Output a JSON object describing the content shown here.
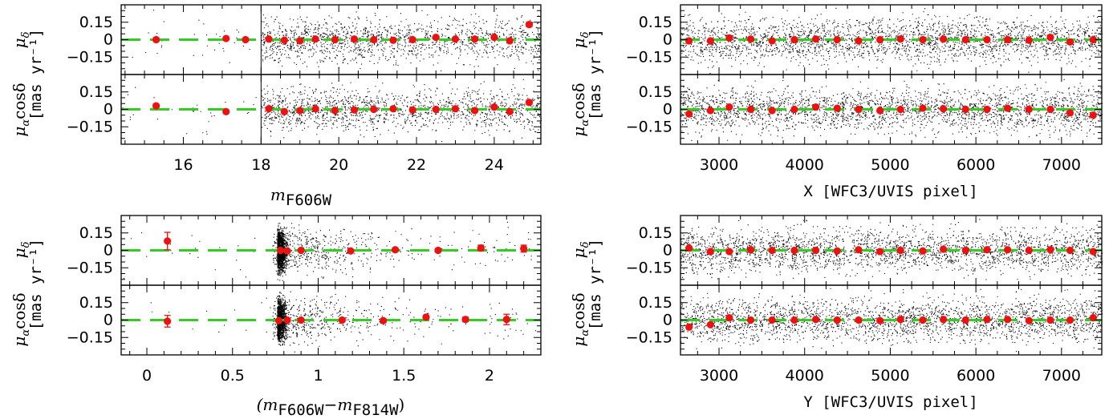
{
  "colors": {
    "scatter": "#000000",
    "mean": "#ee1111",
    "zero_line": "#33cc22"
  },
  "y_labels": {
    "top_symbol": "μ",
    "top_sub": "δ",
    "bottom_symbol": "μ",
    "bottom_sub": "α",
    "bottom_rest": "cosδ",
    "units": "[mas yr⁻¹]"
  },
  "chart_data": [
    {
      "id": "mag",
      "type": "scatter",
      "xlabel": "m",
      "xlabel_sub": "F606W",
      "xlim": [
        14.4,
        25.2
      ],
      "xticks": [
        16,
        18,
        20,
        22,
        24
      ],
      "x_major_step": 2,
      "x_minor_step": 0.5,
      "ylim": [
        -0.3,
        0.3
      ],
      "yticks": [
        0.15,
        0,
        -0.15
      ],
      "ytick_labels": [
        "0.15",
        "0",
        "−0.15"
      ],
      "grid": false,
      "reference_lines": [
        0
      ],
      "vertical_lines": [
        18
      ],
      "panels": [
        {
          "name": "μδ",
          "x": [
            15.3,
            17.1,
            17.6,
            18.2,
            18.6,
            19.0,
            19.4,
            19.9,
            20.4,
            20.9,
            21.4,
            21.9,
            22.5,
            23.0,
            23.5,
            24.0,
            24.4,
            24.9
          ],
          "y": [
            0.0,
            0.01,
            0.0,
            0.005,
            -0.005,
            -0.01,
            0.005,
            0.0,
            0.005,
            0.0,
            -0.005,
            0.0,
            0.02,
            0.005,
            0.005,
            0.02,
            -0.01,
            0.13
          ],
          "err": [
            0.015,
            0.01,
            0.008,
            0.006,
            0.005,
            0.005,
            0.005,
            0.005,
            0.005,
            0.006,
            0.006,
            0.007,
            0.008,
            0.009,
            0.01,
            0.012,
            0.015,
            0.02
          ]
        },
        {
          "name": "μα cosδ",
          "x": [
            15.3,
            17.1,
            18.2,
            18.6,
            19.0,
            19.4,
            19.9,
            20.4,
            20.9,
            21.4,
            21.9,
            22.5,
            23.0,
            23.5,
            24.0,
            24.4,
            24.9
          ],
          "y": [
            0.03,
            -0.02,
            0.005,
            -0.02,
            -0.01,
            0.005,
            -0.01,
            -0.005,
            0.0,
            0.005,
            -0.005,
            0.0,
            0.005,
            -0.01,
            0.02,
            -0.02,
            0.06
          ],
          "err": [
            0.015,
            0.01,
            0.006,
            0.005,
            0.005,
            0.005,
            0.005,
            0.005,
            0.006,
            0.006,
            0.007,
            0.008,
            0.009,
            0.01,
            0.012,
            0.015,
            0.02
          ]
        }
      ]
    },
    {
      "id": "colx",
      "type": "scatter",
      "xlabel": "X [WFC3/UVIS pixel]",
      "xlim": [
        2550,
        7470
      ],
      "xticks": [
        3000,
        4000,
        5000,
        6000,
        7000
      ],
      "x_major_step": 1000,
      "x_minor_step": 250,
      "ylim": [
        -0.3,
        0.3
      ],
      "yticks": [
        0.15,
        0,
        -0.15
      ],
      "ytick_labels": [
        "0.15",
        "0",
        "−0.15"
      ],
      "grid": false,
      "reference_lines": [
        0
      ],
      "panels": [
        {
          "name": "μδ",
          "x": [
            2650,
            2900,
            3120,
            3370,
            3620,
            3880,
            4130,
            4380,
            4630,
            4880,
            5120,
            5380,
            5620,
            5880,
            6130,
            6370,
            6620,
            6870,
            7100,
            7370
          ],
          "y": [
            -0.01,
            -0.01,
            0.015,
            0.005,
            -0.01,
            0.0,
            0.005,
            0.0,
            -0.01,
            0.0,
            0.005,
            0.0,
            0.005,
            0.0,
            0.0,
            0.0,
            -0.005,
            0.02,
            -0.02,
            0.0
          ],
          "err": [
            0.008,
            0.007,
            0.007,
            0.006,
            0.006,
            0.006,
            0.006,
            0.006,
            0.006,
            0.006,
            0.006,
            0.006,
            0.006,
            0.006,
            0.006,
            0.006,
            0.006,
            0.007,
            0.007,
            0.008
          ]
        },
        {
          "name": "μα cosδ",
          "x": [
            2650,
            2900,
            3120,
            3370,
            3620,
            3880,
            4130,
            4380,
            4630,
            4880,
            5120,
            5380,
            5620,
            5880,
            6130,
            6370,
            6620,
            6870,
            7100,
            7370
          ],
          "y": [
            -0.04,
            -0.01,
            0.02,
            0.0,
            -0.01,
            0.0,
            0.02,
            0.01,
            0.0,
            -0.01,
            0.0,
            0.01,
            0.005,
            0.0,
            0.0,
            0.01,
            0.0,
            0.0,
            -0.03,
            -0.05
          ],
          "err": [
            0.008,
            0.007,
            0.007,
            0.006,
            0.006,
            0.006,
            0.006,
            0.006,
            0.006,
            0.006,
            0.006,
            0.006,
            0.006,
            0.006,
            0.006,
            0.006,
            0.006,
            0.007,
            0.007,
            0.008
          ]
        }
      ]
    },
    {
      "id": "color",
      "type": "scatter",
      "xlabel": "(m",
      "xlabel_sub": "F606W",
      "xlabel_mid": "−m",
      "xlabel_sub2": "F814W",
      "xlabel_end": ")",
      "xlim": [
        -0.15,
        2.3
      ],
      "xticks": [
        0,
        0.5,
        1,
        1.5,
        2
      ],
      "x_major_step": 0.5,
      "x_minor_step": 0.1,
      "ylim": [
        -0.3,
        0.3
      ],
      "yticks": [
        0.15,
        0,
        -0.15
      ],
      "ytick_labels": [
        "0.15",
        "0",
        "−0.15"
      ],
      "grid": false,
      "reference_lines": [
        0
      ],
      "panels": [
        {
          "name": "μδ",
          "x": [
            0.12,
            0.78,
            0.82,
            0.9,
            1.19,
            1.45,
            1.7,
            1.95,
            2.2
          ],
          "y": [
            0.08,
            0.0,
            -0.005,
            0.0,
            -0.005,
            0.005,
            0.0,
            0.02,
            0.015
          ],
          "err": [
            0.075,
            0.004,
            0.004,
            0.005,
            0.01,
            0.015,
            0.015,
            0.025,
            0.03
          ]
        },
        {
          "name": "μα cosδ",
          "x": [
            0.12,
            0.77,
            0.82,
            0.9,
            1.14,
            1.38,
            1.63,
            1.86,
            2.1
          ],
          "y": [
            -0.01,
            -0.005,
            0.0,
            0.0,
            0.0,
            -0.005,
            0.025,
            0.005,
            0.005
          ],
          "err": [
            0.05,
            0.004,
            0.004,
            0.005,
            0.01,
            0.015,
            0.015,
            0.02,
            0.045
          ]
        }
      ]
    },
    {
      "id": "coly",
      "type": "scatter",
      "xlabel": "Y [WFC3/UVIS pixel]",
      "xlim": [
        2550,
        7470
      ],
      "xticks": [
        3000,
        4000,
        5000,
        6000,
        7000
      ],
      "x_major_step": 1000,
      "x_minor_step": 250,
      "ylim": [
        -0.3,
        0.3
      ],
      "yticks": [
        0.15,
        0,
        -0.15
      ],
      "ytick_labels": [
        "0.15",
        "0",
        "−0.15"
      ],
      "grid": false,
      "reference_lines": [
        0
      ],
      "panels": [
        {
          "name": "μδ",
          "x": [
            2650,
            2900,
            3120,
            3370,
            3620,
            3880,
            4130,
            4380,
            4630,
            4880,
            5120,
            5380,
            5620,
            5880,
            6130,
            6370,
            6620,
            6870,
            7100,
            7370
          ],
          "y": [
            0.02,
            -0.01,
            -0.01,
            0.005,
            0.0,
            0.0,
            0.0,
            -0.005,
            0.005,
            -0.01,
            0.0,
            -0.005,
            0.01,
            0.0,
            0.005,
            0.005,
            0.0,
            0.005,
            0.0,
            -0.01
          ],
          "err": [
            0.008,
            0.007,
            0.007,
            0.006,
            0.006,
            0.006,
            0.006,
            0.006,
            0.006,
            0.006,
            0.006,
            0.006,
            0.006,
            0.006,
            0.006,
            0.006,
            0.006,
            0.007,
            0.007,
            0.008
          ]
        },
        {
          "name": "μα cosδ",
          "x": [
            2650,
            2900,
            3120,
            3370,
            3620,
            3880,
            4130,
            4380,
            4630,
            4880,
            5120,
            5380,
            5620,
            5880,
            6130,
            6370,
            6620,
            6870,
            7100,
            7370
          ],
          "y": [
            -0.06,
            -0.04,
            0.02,
            0.0,
            0.0,
            0.0,
            0.005,
            0.0,
            0.0,
            -0.005,
            0.005,
            0.0,
            0.005,
            0.0,
            0.005,
            0.005,
            -0.005,
            0.0,
            0.0,
            0.02
          ],
          "err": [
            0.008,
            0.007,
            0.007,
            0.006,
            0.006,
            0.006,
            0.006,
            0.006,
            0.006,
            0.006,
            0.006,
            0.006,
            0.006,
            0.006,
            0.006,
            0.006,
            0.006,
            0.007,
            0.007,
            0.008
          ]
        }
      ]
    }
  ]
}
